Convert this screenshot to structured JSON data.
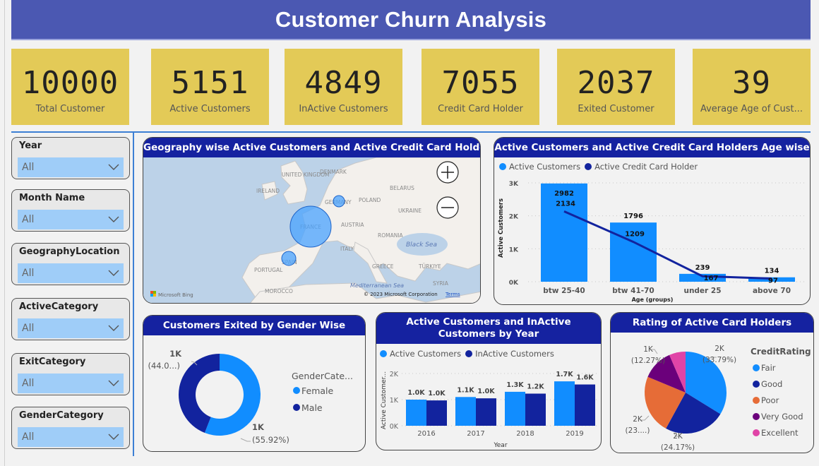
{
  "header": {
    "title": "Customer Churn Analysis"
  },
  "kpis": [
    {
      "value": "10000",
      "label": "Total Customer"
    },
    {
      "value": "5151",
      "label": "Active Customers"
    },
    {
      "value": "4849",
      "label": "InActive Customers"
    },
    {
      "value": "7055",
      "label": "Credit Card Holder"
    },
    {
      "value": "2037",
      "label": "Exited Customer"
    },
    {
      "value": "39",
      "label": "Average Age of Cust..."
    }
  ],
  "slicers": [
    {
      "title": "Year",
      "value": "All"
    },
    {
      "title": "Month Name",
      "value": "All"
    },
    {
      "title": "GeographyLocation",
      "value": "All"
    },
    {
      "title": "ActiveCategory",
      "value": "All"
    },
    {
      "title": "ExitCategory",
      "value": "All"
    },
    {
      "title": "GenderCategory",
      "value": "All"
    }
  ],
  "colors": {
    "header": "#4b58b2",
    "kpi": "#e3ca57",
    "card_title": "#1522a0",
    "light_blue": "#118dff",
    "dark_blue": "#12239e",
    "orange": "#e66c37",
    "purple": "#6b007b",
    "pink": "#e044a7"
  },
  "map": {
    "title": "Geography wise Active Customers and Active Credit Card Holders",
    "labels": {
      "uk": "UNITED KINGDOM",
      "ireland": "IRELAND",
      "denmark": "DENMARK",
      "belarus": "BELARUS",
      "poland": "POLAND",
      "germany": "GERMANY",
      "ukraine": "UKRAINE",
      "france": "FRANCE",
      "austria": "AUSTRIA",
      "romania": "ROMANIA",
      "italy": "ITALY",
      "black_sea": "Black Sea",
      "spain": "SPAIN",
      "portugal": "PORTUGAL",
      "greece": "GREECE",
      "turkiye": "TÜRKIYE",
      "syria": "SYRIA",
      "med_sea": "Mediterranean Sea",
      "morocco": "MOROCCO"
    },
    "bubbles": [
      {
        "name": "France",
        "relative_size": 1.0
      },
      {
        "name": "Germany",
        "relative_size": 0.28
      },
      {
        "name": "Spain",
        "relative_size": 0.26
      }
    ],
    "zoom_in": "+",
    "zoom_out": "−",
    "attribution": "Microsoft Bing",
    "copyright": "© 2023 Microsoft Corporation",
    "terms": "Terms"
  },
  "chart_data": [
    {
      "type": "bar",
      "id": "age",
      "title": "Active Customers and Active Credit Card Holders Age wise",
      "xlabel": "Age (groups)",
      "ylabel": "Active Customers",
      "ylim": [
        0,
        3000
      ],
      "yticks": [
        "0K",
        "1K",
        "2K",
        "3K"
      ],
      "categories": [
        "btw 25-40",
        "btw 41-70",
        "under 25",
        "above 70"
      ],
      "series": [
        {
          "name": "Active Customers",
          "kind": "bar",
          "values": [
            2982,
            1796,
            239,
            134
          ]
        },
        {
          "name": "Active Credit Card Holder",
          "kind": "line",
          "values": [
            2134,
            1209,
            167,
            97
          ]
        }
      ],
      "legend": "top-left"
    },
    {
      "type": "pie",
      "id": "gender",
      "donut": true,
      "title": "Customers Exited by Gender Wise",
      "legend_title": "GenderCate...",
      "slices": [
        {
          "name": "Female",
          "percent": 55.92,
          "label": "1K",
          "pct_label": "(55.92%)"
        },
        {
          "name": "Male",
          "percent": 44.08,
          "label": "1K",
          "pct_label": "(44.0...)"
        }
      ],
      "legend": "right"
    },
    {
      "type": "bar",
      "id": "year",
      "title": "Active Customers and InActive Customers by Year",
      "xlabel": "Year",
      "ylabel": "Active Customer...",
      "ylim": [
        0,
        2000
      ],
      "yticks": [
        "0K",
        "1K",
        "2K"
      ],
      "categories": [
        "2016",
        "2017",
        "2018",
        "2019"
      ],
      "series": [
        {
          "name": "Active Customers",
          "values": [
            1000,
            1100,
            1300,
            1700
          ],
          "labels": [
            "1.0K",
            "1.1K",
            "1.3K",
            "1.7K"
          ]
        },
        {
          "name": "InActive Customers",
          "values": [
            970,
            1050,
            1230,
            1580
          ],
          "labels": [
            "1.0K",
            "1.0K",
            "1.2K",
            "1.6K"
          ]
        }
      ],
      "legend": "top-left"
    },
    {
      "type": "pie",
      "id": "rating",
      "title": "Rating of Active Card Holders",
      "legend_title": "CreditRating",
      "slices": [
        {
          "name": "Fair",
          "percent": 33.79,
          "label": "2K",
          "pct_label": "(33.79%)"
        },
        {
          "name": "Good",
          "percent": 24.17,
          "label": "2K",
          "pct_label": "(24.17%)"
        },
        {
          "name": "Poor",
          "percent": 23.3,
          "label": "2K",
          "pct_label": "(23....)"
        },
        {
          "name": "Very Good",
          "percent": 12.27,
          "label": "1K",
          "pct_label": "(12.27%)"
        },
        {
          "name": "Excellent",
          "percent": 6.47,
          "label": "",
          "pct_label": ""
        }
      ],
      "legend": "right"
    }
  ]
}
